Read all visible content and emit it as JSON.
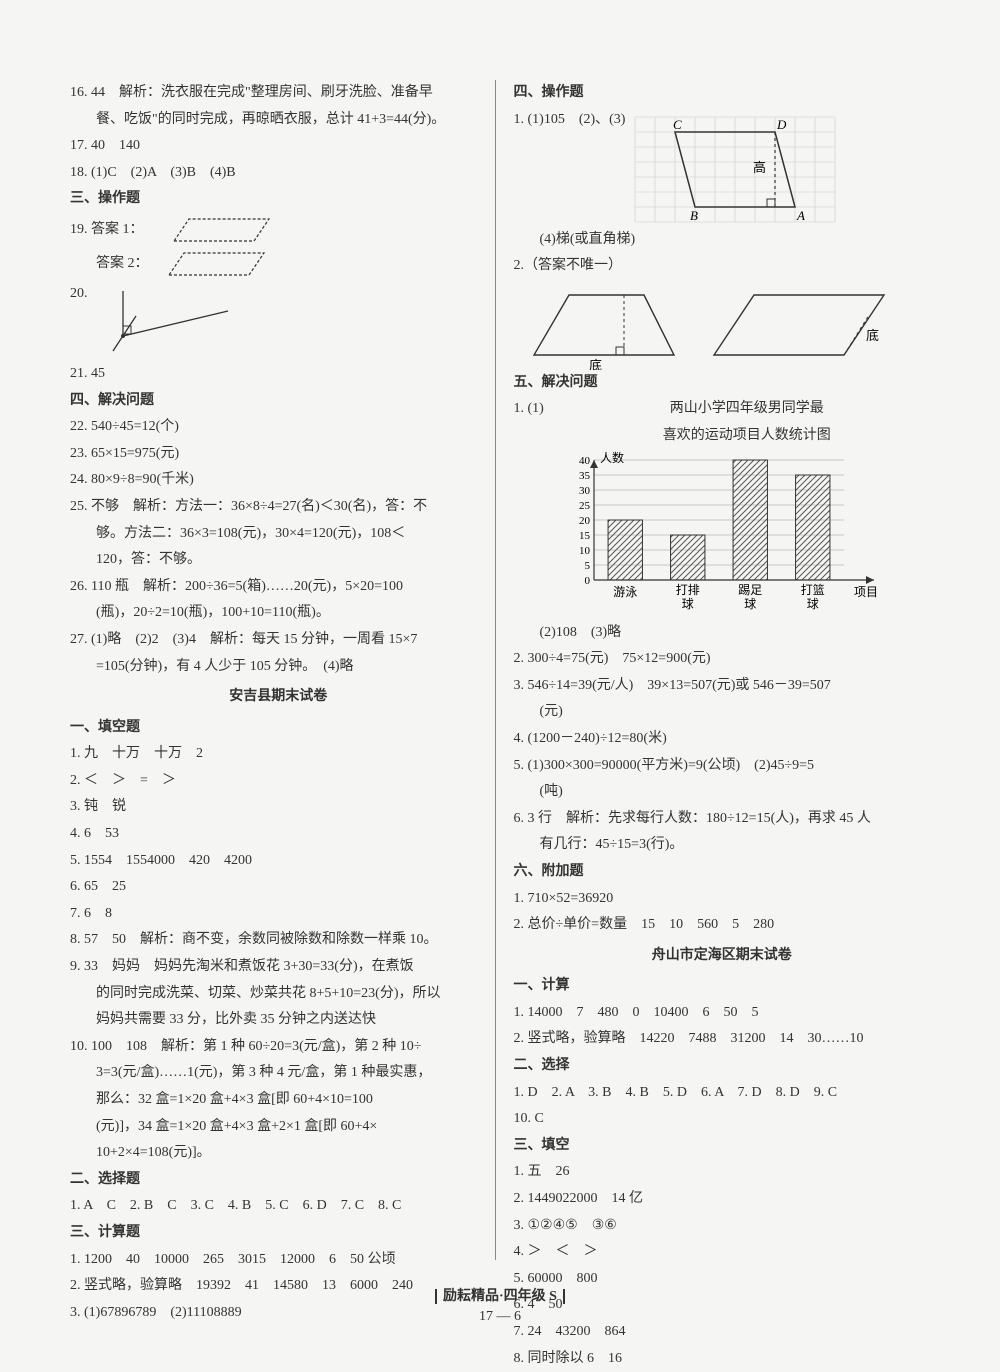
{
  "left": {
    "q16": "16. 44　解析：洗衣服在完成\"整理房间、刷牙洗脸、准备早",
    "q16b": "餐、吃饭\"的同时完成，再晾晒衣服，总计 41+3=44(分)。",
    "q17": "17. 40　140",
    "q18": "18. (1)C　(2)A　(3)B　(4)B",
    "sec3": "三、操作题",
    "q19a": "19. 答案 1：",
    "q19b": "答案 2：",
    "q20": "20.",
    "q21": "21. 45",
    "sec4": "四、解决问题",
    "q22": "22. 540÷45=12(个)",
    "q23": "23. 65×15=975(元)",
    "q24": "24. 80×9÷8=90(千米)",
    "q25": "25. 不够　解析：方法一：36×8÷4=27(名)＜30(名)，答：不",
    "q25b": "够。方法二：36×3=108(元)，30×4=120(元)，108＜",
    "q25c": "120，答：不够。",
    "q26": "26. 110 瓶　解析：200÷36=5(箱)……20(元)，5×20=100",
    "q26b": "(瓶)，20÷2=10(瓶)，100+10=110(瓶)。",
    "q27": "27. (1)略　(2)2　(3)4　解析：每天 15 分钟，一周看 15×7",
    "q27b": "=105(分钟)，有 4 人少于 105 分钟。　(4)略",
    "title2": "安吉县期末试卷",
    "s1": "一、填空题",
    "a1": "1. 九　十万　十万　2",
    "a2": "2. ＜　＞　=　＞",
    "a3": "3. 钝　锐",
    "a4": "4. 6　53",
    "a5": "5. 1554　1554000　420　4200",
    "a6": "6. 65　25",
    "a7": "7. 6　8",
    "a8": "8. 57　50　解析：商不变，余数同被除数和除数一样乘 10。",
    "a9": "9. 33　妈妈　妈妈先淘米和煮饭花 3+30=33(分)，在煮饭",
    "a9b": "的同时完成洗菜、切菜、炒菜共花 8+5+10=23(分)，所以",
    "a9c": "妈妈共需要 33 分，比外卖 35 分钟之内送达快",
    "a10": "10. 100　108　解析：第 1 种 60÷20=3(元/盒)，第 2 种 10÷",
    "a10b": "3=3(元/盒)……1(元)，第 3 种 4 元/盒，第 1 种最实惠，",
    "a10c": "那么：32 盒=1×20 盒+4×3 盒[即 60+4×10=100",
    "a10d": "(元)]，34 盒=1×20 盒+4×3 盒+2×1 盒[即 60+4×",
    "a10e": "10+2×4=108(元)]。",
    "s2": "二、选择题",
    "b1": "1. A　C　2. B　C　3. C　4. B　5. C　6. D　7. C　8. C",
    "s3": "三、计算题",
    "c1": "1. 1200　40　10000　265　3015　12000　6　50 公顷",
    "c2": "2. 竖式略，验算略　19392　41　14580　13　6000　240",
    "c3": "3. (1)67896789　(2)11108889"
  },
  "right": {
    "sec4": "四、操作题",
    "r1": "1. (1)105　(2)、(3)",
    "r1b": "(4)梯(或直角梯)",
    "r2": "2.（答案不唯一）",
    "sec5": "五、解决问题",
    "r3": "1. (1)",
    "chart_title1": "两山小学四年级男同学最",
    "chart_title2": "喜欢的运动项目人数统计图",
    "chart": {
      "ylabel": "人数",
      "yticks": [
        0,
        5,
        10,
        15,
        20,
        25,
        30,
        35,
        40
      ],
      "categories": [
        "游泳",
        "打排球",
        "踢足球",
        "打篮球"
      ],
      "xlabel": "项目",
      "values": [
        20,
        15,
        40,
        35
      ],
      "bar_fill": "#bbbbbb",
      "hatch": true,
      "axis_color": "#333",
      "grid_color": "#999"
    },
    "r3b": "(2)108　(3)略",
    "r4": "2. 300÷4=75(元)　75×12=900(元)",
    "r5": "3. 546÷14=39(元/人)　39×13=507(元)或 546－39=507",
    "r5b": "(元)",
    "r6": "4. (1200－240)÷12=80(米)",
    "r7": "5. (1)300×300=90000(平方米)=9(公顷)　(2)45÷9=5",
    "r7b": "(吨)",
    "r8": "6. 3 行　解析：先求每行人数：180÷12=15(人)，再求 45 人",
    "r8b": "有几行：45÷15=3(行)。",
    "sec6": "六、附加题",
    "r9": "1. 710×52=36920",
    "r10": "2. 总价÷单价=数量　15　10　560　5　280",
    "title3": "舟山市定海区期末试卷",
    "z1h": "一、计算",
    "z1": "1. 14000　7　480　0　10400　6　50　5",
    "z2": "2. 竖式略，验算略　14220　7488　31200　14　30……10",
    "z2h": "二、选择",
    "z3": "1. D　2. A　3. B　4. B　5. D　6. A　7. D　8. D　9. C",
    "z3b": "10. C",
    "z3h": "三、填空",
    "z4": "1. 五　26",
    "z5": "2. 1449022000　14 亿",
    "z6": "3. ①②④⑤　③⑥",
    "z7": "4. ＞　＜　＞",
    "z8": "5. 60000　800",
    "z9": "6. 4　50",
    "z10": "7. 24　43200　864",
    "z11": "8. 同时除以 6　16"
  },
  "footer": {
    "brand": "励耘精品·四年级 S",
    "page": "17 — 6"
  },
  "shapes": {
    "parallelogram_dashed": {
      "stroke": "#333",
      "fill": "none",
      "dash": "3,2"
    },
    "parallelogram_solid": {
      "stroke": "#333",
      "fill": "none"
    },
    "grid_color": "#cccccc"
  }
}
